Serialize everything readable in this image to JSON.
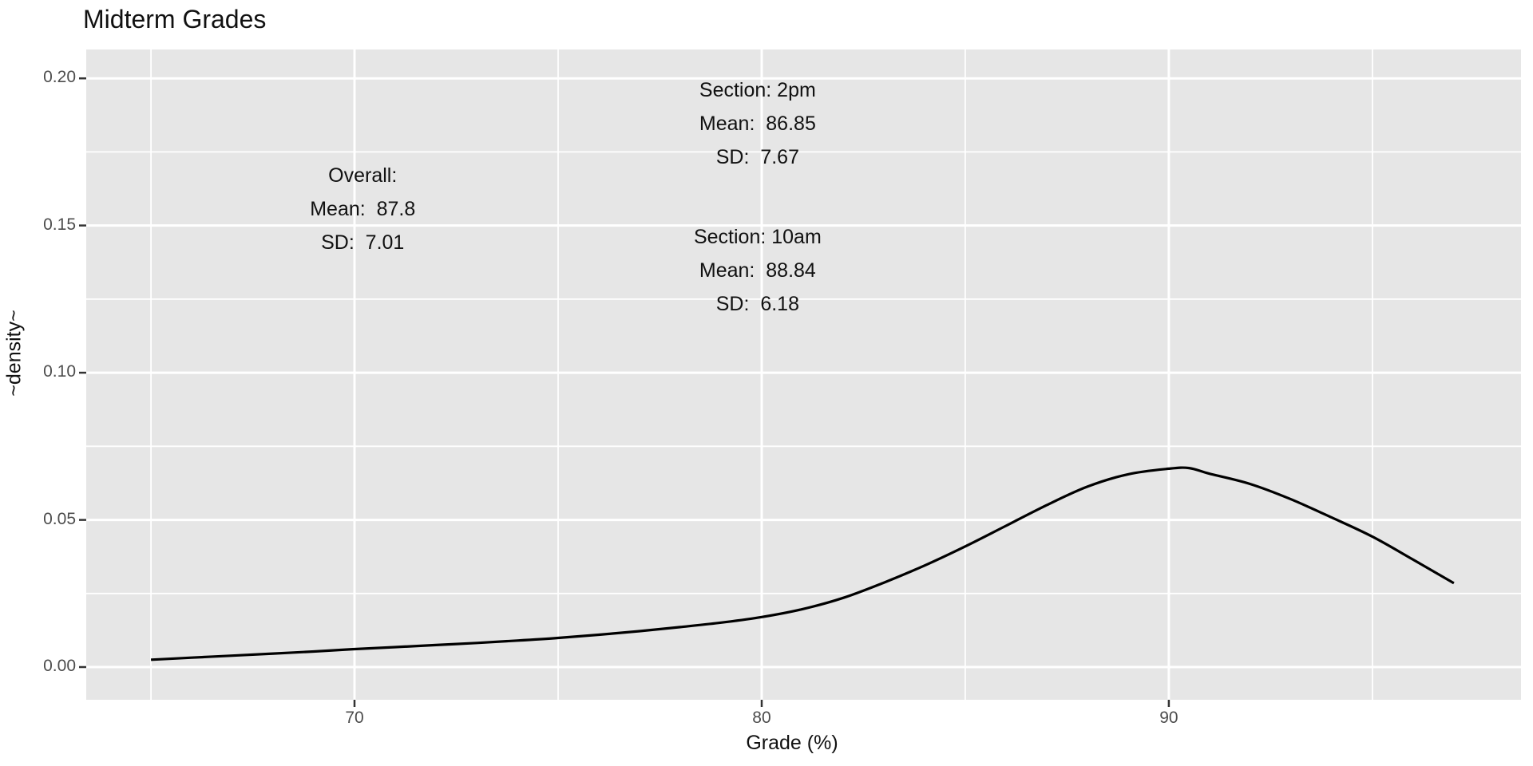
{
  "chart_data": {
    "type": "line",
    "title": "Midterm Grades",
    "xlabel": "Grade (%)",
    "ylabel": "~density~",
    "xlim": [
      63.41,
      98.65
    ],
    "ylim": [
      -0.0111,
      0.2098
    ],
    "grid": true,
    "legend": "none",
    "x_ticks": [
      70,
      80,
      90
    ],
    "x_tick_labels": [
      "70",
      "80",
      "90"
    ],
    "x_minor_ticks": [
      65,
      75,
      85,
      95
    ],
    "y_ticks": [
      0.0,
      0.05,
      0.1,
      0.15,
      0.2
    ],
    "y_tick_labels": [
      "0.00",
      "0.05",
      "0.10",
      "0.15",
      "0.20"
    ],
    "y_minor_ticks": [
      0.025,
      0.075,
      0.125,
      0.175
    ],
    "series": [
      {
        "name": "grade-density-curve",
        "x": [
          65,
          66,
          67,
          68,
          69,
          70,
          71,
          72,
          73,
          74,
          75,
          76,
          77,
          78,
          79,
          80,
          81,
          82,
          83,
          84,
          85,
          86,
          87,
          88,
          89,
          90,
          90.5,
          91,
          92,
          93,
          94,
          95,
          96,
          97
        ],
        "y": [
          0.0025,
          0.0032,
          0.0039,
          0.0046,
          0.0053,
          0.0061,
          0.0068,
          0.0075,
          0.0082,
          0.009,
          0.0099,
          0.011,
          0.0122,
          0.0136,
          0.0151,
          0.017,
          0.0197,
          0.0235,
          0.0287,
          0.0345,
          0.041,
          0.048,
          0.055,
          0.0613,
          0.0655,
          0.0674,
          0.0676,
          0.0657,
          0.0622,
          0.057,
          0.0508,
          0.0443,
          0.0365,
          0.0285
        ]
      }
    ],
    "annotations": [
      {
        "x": 79.9,
        "y": 0.196,
        "lines": [
          "Section: 2pm",
          "Mean:  86.85",
          "SD:  7.67"
        ]
      },
      {
        "x": 70.2,
        "y": 0.167,
        "lines": [
          "Overall:",
          "Mean:  87.8",
          "SD:  7.01"
        ]
      },
      {
        "x": 79.9,
        "y": 0.146,
        "lines": [
          "Section: 10am",
          "Mean:  88.84",
          "SD:  6.18"
        ]
      }
    ],
    "colors": {
      "panel_bg": "#e6e6e6",
      "grid": "#ffffff",
      "curve": "#000000",
      "tick_text": "#4d4d4d",
      "tick_mark": "#333333",
      "text": "#111111",
      "outer_bg": "#ffffff"
    }
  }
}
